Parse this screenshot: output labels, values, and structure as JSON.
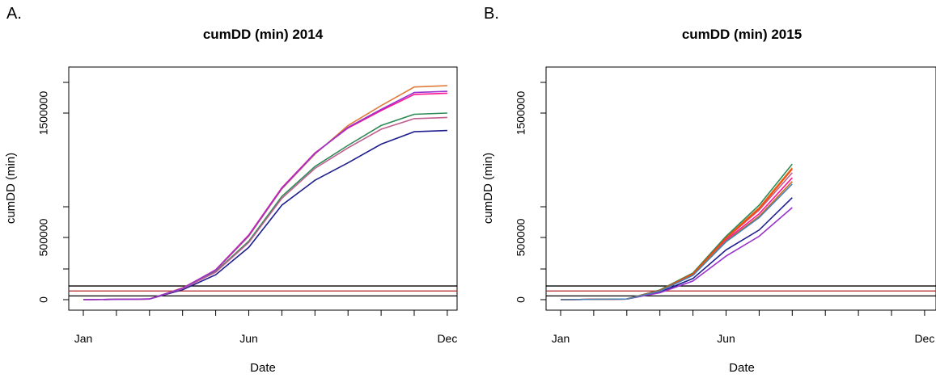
{
  "panels": [
    {
      "label": "A.",
      "title": "cumDD (min) 2014"
    },
    {
      "label": "B.",
      "title": "cumDD (min) 2015"
    }
  ],
  "colors": {
    "series": [
      "#1f1f8f",
      "#ff1493",
      "#e07b39",
      "#2e8b57",
      "#c06090",
      "#9932cc",
      "#d2691e",
      "#ff4500",
      "#4682b4",
      "#8b0000"
    ],
    "threshold_lines": [
      "#000000",
      "#b22222",
      "#000000"
    ]
  },
  "chart_data": [
    {
      "type": "line",
      "title": "cumDD (min) 2014",
      "xlabel": "Date",
      "ylabel": "cumDD (min)",
      "x_ticks": [
        "Jan",
        "Jun",
        "Dec"
      ],
      "y_ticks": [
        "0",
        "500000",
        "1500000"
      ],
      "xlim": [
        1,
        12
      ],
      "ylim": [
        -60000,
        1900000
      ],
      "thresholds": [
        30000,
        70000,
        110000
      ],
      "series": [
        {
          "values": [
            [
              1,
              0
            ],
            [
              3,
              5000
            ],
            [
              4,
              80000
            ],
            [
              5,
              200000
            ],
            [
              6,
              420000
            ],
            [
              7,
              760000
            ],
            [
              8,
              960000
            ],
            [
              9,
              1100000
            ],
            [
              10,
              1250000
            ],
            [
              11,
              1350000
            ],
            [
              12,
              1360000
            ]
          ]
        },
        {
          "values": [
            [
              1,
              0
            ],
            [
              3,
              5000
            ],
            [
              4,
              90000
            ],
            [
              5,
              240000
            ],
            [
              6,
              520000
            ],
            [
              7,
              900000
            ],
            [
              8,
              1180000
            ],
            [
              9,
              1380000
            ],
            [
              10,
              1520000
            ],
            [
              11,
              1650000
            ],
            [
              12,
              1660000
            ]
          ]
        },
        {
          "values": [
            [
              1,
              0
            ],
            [
              3,
              5000
            ],
            [
              4,
              95000
            ],
            [
              5,
              235000
            ],
            [
              6,
              510000
            ],
            [
              7,
              890000
            ],
            [
              8,
              1170000
            ],
            [
              9,
              1400000
            ],
            [
              10,
              1560000
            ],
            [
              11,
              1710000
            ],
            [
              12,
              1720000
            ]
          ]
        },
        {
          "values": [
            [
              1,
              0
            ],
            [
              3,
              5000
            ],
            [
              4,
              90000
            ],
            [
              5,
              225000
            ],
            [
              6,
              470000
            ],
            [
              7,
              830000
            ],
            [
              8,
              1070000
            ],
            [
              9,
              1240000
            ],
            [
              10,
              1400000
            ],
            [
              11,
              1490000
            ],
            [
              12,
              1500000
            ]
          ]
        },
        {
          "values": [
            [
              1,
              0
            ],
            [
              3,
              5000
            ],
            [
              4,
              88000
            ],
            [
              5,
              220000
            ],
            [
              6,
              460000
            ],
            [
              7,
              815000
            ],
            [
              8,
              1055000
            ],
            [
              9,
              1220000
            ],
            [
              10,
              1370000
            ],
            [
              11,
              1455000
            ],
            [
              12,
              1465000
            ]
          ]
        },
        {
          "values": [
            [
              1,
              0
            ],
            [
              3,
              5000
            ],
            [
              4,
              92000
            ],
            [
              5,
              238000
            ],
            [
              6,
              515000
            ],
            [
              7,
              895000
            ],
            [
              8,
              1175000
            ],
            [
              9,
              1385000
            ],
            [
              10,
              1530000
            ],
            [
              11,
              1665000
            ],
            [
              12,
              1675000
            ]
          ]
        }
      ]
    },
    {
      "type": "line",
      "title": "cumDD (min) 2015",
      "xlabel": "Date",
      "ylabel": "cumDD (min)",
      "x_ticks": [
        "Jan",
        "Jun",
        "Dec"
      ],
      "y_ticks": [
        "0",
        "500000",
        "1500000"
      ],
      "xlim": [
        1,
        12
      ],
      "ylim": [
        -60000,
        1900000
      ],
      "thresholds": [
        30000,
        70000,
        110000
      ],
      "series": [
        {
          "values": [
            [
              1,
              0
            ],
            [
              3,
              5000
            ],
            [
              4,
              60000
            ],
            [
              5,
              170000
            ],
            [
              6,
              400000
            ],
            [
              7,
              560000
            ],
            [
              8,
              820000
            ]
          ]
        },
        {
          "values": [
            [
              1,
              0
            ],
            [
              3,
              5000
            ],
            [
              4,
              70000
            ],
            [
              5,
              200000
            ],
            [
              6,
              480000
            ],
            [
              7,
              690000
            ],
            [
              8,
              980000
            ]
          ]
        },
        {
          "values": [
            [
              1,
              0
            ],
            [
              3,
              5000
            ],
            [
              4,
              75000
            ],
            [
              5,
              210000
            ],
            [
              6,
              500000
            ],
            [
              7,
              740000
            ],
            [
              8,
              1060000
            ]
          ]
        },
        {
          "values": [
            [
              1,
              0
            ],
            [
              3,
              5000
            ],
            [
              4,
              78000
            ],
            [
              5,
              215000
            ],
            [
              6,
              510000
            ],
            [
              7,
              760000
            ],
            [
              8,
              1090000
            ]
          ]
        },
        {
          "values": [
            [
              1,
              0
            ],
            [
              3,
              5000
            ],
            [
              4,
              72000
            ],
            [
              5,
              205000
            ],
            [
              6,
              490000
            ],
            [
              7,
              720000
            ],
            [
              8,
              1020000
            ]
          ]
        },
        {
          "values": [
            [
              1,
              0
            ],
            [
              3,
              5000
            ],
            [
              4,
              55000
            ],
            [
              5,
              150000
            ],
            [
              6,
              350000
            ],
            [
              7,
              510000
            ],
            [
              8,
              740000
            ]
          ]
        },
        {
          "values": [
            [
              1,
              0
            ],
            [
              3,
              5000
            ],
            [
              4,
              70000
            ],
            [
              5,
              200000
            ],
            [
              6,
              470000
            ],
            [
              7,
              670000
            ],
            [
              8,
              950000
            ]
          ]
        },
        {
          "values": [
            [
              1,
              0
            ],
            [
              3,
              5000
            ],
            [
              4,
              73000
            ],
            [
              5,
              208000
            ],
            [
              6,
              495000
            ],
            [
              7,
              730000
            ],
            [
              8,
              1050000
            ]
          ]
        },
        {
          "values": [
            [
              1,
              0
            ],
            [
              3,
              5000
            ],
            [
              4,
              68000
            ],
            [
              5,
              195000
            ],
            [
              6,
              465000
            ],
            [
              7,
              660000
            ],
            [
              8,
              930000
            ]
          ]
        }
      ]
    }
  ]
}
